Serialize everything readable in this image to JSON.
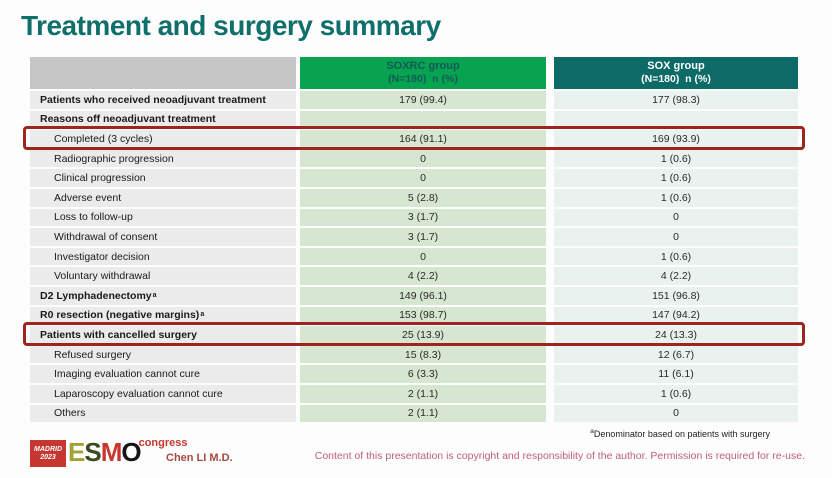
{
  "slide": {
    "title": "Treatment and surgery summary",
    "presenter": "Chen LI M.D.",
    "footnote_marker": "a",
    "footnote": "Denominator based on patients with surgery",
    "copyright": "Content of this presentation is copyright and responsibility of the author. Permission is required for re-use."
  },
  "logo": {
    "location": "MADRID",
    "year": "2023",
    "letters": [
      "E",
      "S",
      "M",
      "O"
    ],
    "letter_colors": [
      "#a3a133",
      "#3c4a21",
      "#c8362e",
      "#151515"
    ],
    "congress": "congress"
  },
  "colors": {
    "title_teal": "#0f6f6b",
    "soxrc_header_green": "#07a351",
    "soxrc_header_text": "#135a58",
    "sox_header_teal": "#0c6a67",
    "highlight_red": "#9e2420",
    "copyright_pink": "#c0607a"
  },
  "table": {
    "columns": [
      {
        "label": ""
      },
      {
        "label": "SOXRC group",
        "sublabel": "(N=180)  n (%)"
      },
      {
        "label": "SOX group",
        "sublabel": "(N=180)  n (%)"
      }
    ],
    "rows": [
      {
        "label": "Patients who received neoadjuvant treatment",
        "bold": true,
        "soxrc": "179 (99.4)",
        "sox": "177 (98.3)"
      },
      {
        "label": "Reasons off neoadjuvant treatment",
        "bold": true,
        "soxrc": "",
        "sox": ""
      },
      {
        "label": "Completed (3 cycles)",
        "indent": true,
        "soxrc": "164 (91.1)",
        "sox": "169 (93.9)",
        "highlight": true
      },
      {
        "label": "Radiographic progression",
        "indent": true,
        "soxrc": "0",
        "sox": "1 (0.6)"
      },
      {
        "label": "Clinical progression",
        "indent": true,
        "soxrc": "0",
        "sox": "1 (0.6)"
      },
      {
        "label": "Adverse event",
        "indent": true,
        "soxrc": "5 (2.8)",
        "sox": "1 (0.6)"
      },
      {
        "label": "Loss to follow-up",
        "indent": true,
        "soxrc": "3 (1.7)",
        "sox": "0"
      },
      {
        "label": "Withdrawal of consent",
        "indent": true,
        "soxrc": "3 (1.7)",
        "sox": "0"
      },
      {
        "label": "Investigator decision",
        "indent": true,
        "soxrc": "0",
        "sox": "1 (0.6)"
      },
      {
        "label": "Voluntary withdrawal",
        "indent": true,
        "soxrc": "4 (2.2)",
        "sox": "4 (2.2)"
      },
      {
        "label": "D2 Lymphadenectomy",
        "sup": "a",
        "bold": true,
        "soxrc": "149 (96.1)",
        "sox": "151 (96.8)"
      },
      {
        "label": "R0 resection (negative margins)",
        "sup": "a",
        "bold": true,
        "soxrc": "153 (98.7)",
        "sox": "147 (94.2)"
      },
      {
        "label": "Patients with cancelled surgery",
        "bold": true,
        "soxrc": "25 (13.9)",
        "sox": "24 (13.3)",
        "highlight": true
      },
      {
        "label": "Refused surgery",
        "indent": true,
        "soxrc": "15 (8.3)",
        "sox": "12 (6.7)"
      },
      {
        "label": "Imaging evaluation cannot cure",
        "indent": true,
        "soxrc": "6 (3.3)",
        "sox": "11 (6.1)"
      },
      {
        "label": "Laparoscopy evaluation cannot cure",
        "indent": true,
        "soxrc": "2 (1.1)",
        "sox": "1 (0.6)"
      },
      {
        "label": "Others",
        "indent": true,
        "soxrc": "2 (1.1)",
        "sox": "0"
      }
    ]
  }
}
